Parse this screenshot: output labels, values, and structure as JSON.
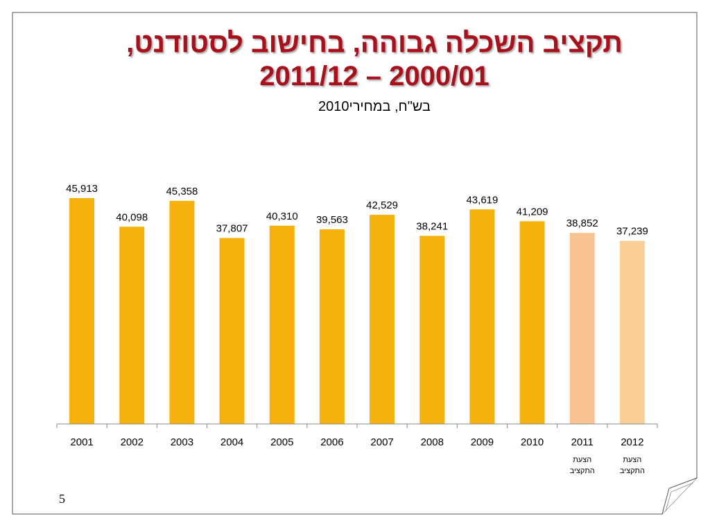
{
  "slide": {
    "title_line1": "תקציב השכלה גבוהה, בחישוב לסטודנט,",
    "title_line2": "2011/12 – 2000/01",
    "subtitle": "בש\"ח, במחירי2010",
    "page_number": "5"
  },
  "colors": {
    "title": "#a8101c",
    "bar": "#f6b10c",
    "bar_2011": "#f8c391",
    "bar_2012": "#fbcf98"
  },
  "chart_data": {
    "type": "bar",
    "title": "",
    "xlabel": "",
    "ylabel": "",
    "ylim": [
      0,
      50000
    ],
    "grid": false,
    "legend": "none",
    "categories": [
      "2001",
      "2002",
      "2003",
      "2004",
      "2005",
      "2006",
      "2007",
      "2008",
      "2009",
      "2010",
      "2011",
      "2012"
    ],
    "values": [
      45913,
      40098,
      45358,
      37807,
      40310,
      39563,
      42529,
      38241,
      43619,
      41209,
      38852,
      37239
    ],
    "value_labels": [
      "45,913",
      "40,098",
      "45,358",
      "37,807",
      "40,310",
      "39,563",
      "42,529",
      "38,241",
      "43,619",
      "41,209",
      "38,852",
      "37,239"
    ],
    "category_notes": [
      "",
      "",
      "",
      "",
      "",
      "",
      "",
      "",
      "",
      "",
      "הצעת התקציב",
      "הצעת התקציב"
    ],
    "note_lines": [
      [],
      [],
      [],
      [],
      [],
      [],
      [],
      [],
      [],
      [],
      [
        "הצעת",
        "התקציב"
      ],
      [
        "הצעת",
        "התקציב"
      ]
    ]
  }
}
